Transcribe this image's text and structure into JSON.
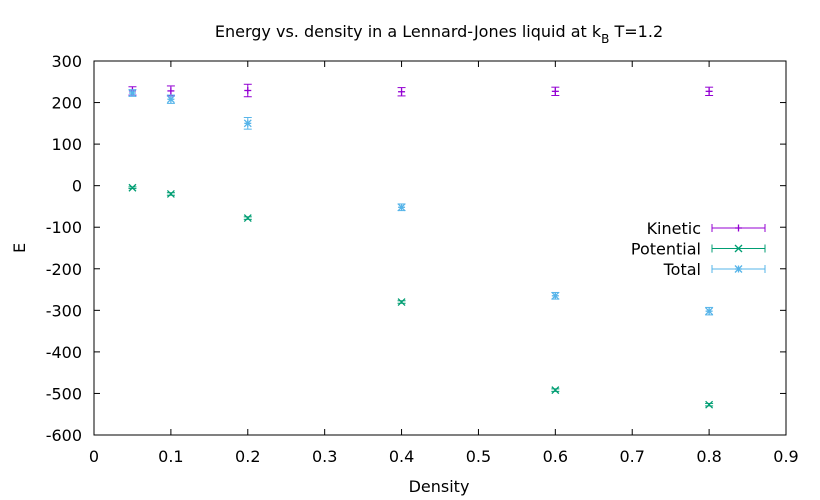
{
  "chart_data": {
    "type": "scatter",
    "title": "Energy vs. density in a Lennard-Jones liquid at k",
    "title_sub": "B",
    "title_suffix": " T=1.2",
    "xlabel": "Density",
    "ylabel": "E",
    "xlim": [
      0,
      0.9
    ],
    "ylim": [
      -600,
      300
    ],
    "xticks": [
      0,
      0.1,
      0.2,
      0.3,
      0.4,
      0.5,
      0.6,
      0.7,
      0.8,
      0.9
    ],
    "yticks": [
      -600,
      -500,
      -400,
      -300,
      -200,
      -100,
      0,
      100,
      200,
      300
    ],
    "legend_position": "right",
    "grid": false,
    "error_bars": true,
    "series": [
      {
        "name": "Kinetic",
        "color": "#9400d3",
        "marker": "plus",
        "x": [
          0.05,
          0.1,
          0.2,
          0.4,
          0.6,
          0.8
        ],
        "y": [
          228,
          228,
          229,
          226,
          227,
          227
        ],
        "err": [
          10,
          12,
          15,
          10,
          10,
          10
        ]
      },
      {
        "name": "Potential",
        "color": "#009e73",
        "marker": "cross",
        "x": [
          0.05,
          0.1,
          0.2,
          0.4,
          0.6,
          0.8
        ],
        "y": [
          -5,
          -20,
          -78,
          -280,
          -492,
          -527
        ],
        "err": [
          2,
          3,
          3,
          3,
          3,
          3
        ]
      },
      {
        "name": "Total",
        "color": "#56b4e9",
        "marker": "asterisk",
        "x": [
          0.05,
          0.1,
          0.2,
          0.4,
          0.6,
          0.8
        ],
        "y": [
          223,
          208,
          150,
          -52,
          -265,
          -302
        ],
        "err": [
          8,
          10,
          14,
          8,
          8,
          9
        ]
      }
    ]
  }
}
